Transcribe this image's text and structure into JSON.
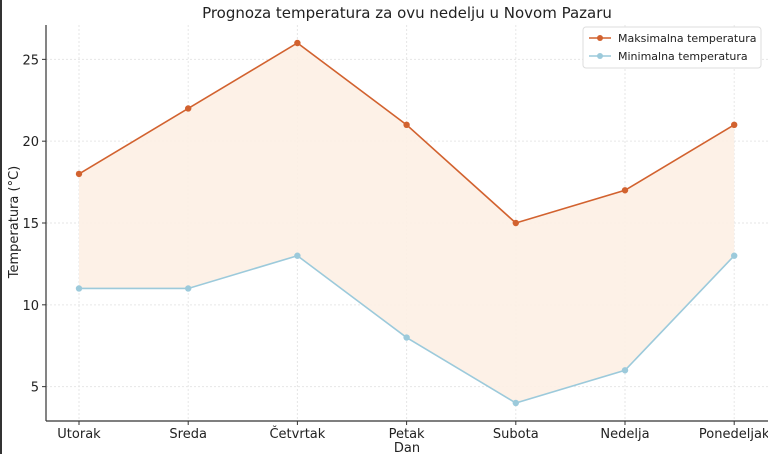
{
  "chart_data": {
    "type": "line",
    "title": "Prognoza temperatura za ovu nedelju u Novom Pazaru",
    "xlabel": "Dan",
    "ylabel": "Temperatura (°C)",
    "categories": [
      "Utorak",
      "Sreda",
      "Četvrtak",
      "Petak",
      "Subota",
      "Nedelja",
      "Ponedeljak"
    ],
    "series": [
      {
        "name": "Maksimalna temperatura",
        "values": [
          18,
          22,
          26,
          21,
          15,
          17,
          21
        ],
        "color": "#d2622f"
      },
      {
        "name": "Minimalna temperatura",
        "values": [
          11,
          11,
          13,
          8,
          4,
          6,
          13
        ],
        "color": "#9ccadb"
      }
    ],
    "fill_between": {
      "color": "#fdf0e4"
    },
    "yticks": [
      5,
      10,
      15,
      20,
      25
    ],
    "ylim": [
      2.9,
      27.1
    ],
    "grid": true,
    "legend": "top-right"
  }
}
